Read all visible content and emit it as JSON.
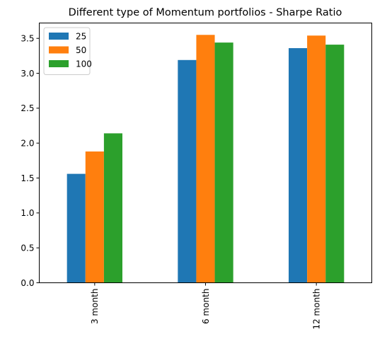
{
  "chart_data": {
    "type": "bar",
    "title": "Different type of Momentum portfolios - Sharpe Ratio",
    "xlabel": "",
    "ylabel": "",
    "categories": [
      "3 month",
      "6 month",
      "12 month"
    ],
    "series": [
      {
        "name": "25",
        "color": "#1f77b4",
        "values": [
          1.56,
          3.19,
          3.36
        ]
      },
      {
        "name": "50",
        "color": "#ff7f0e",
        "values": [
          1.88,
          3.55,
          3.54
        ]
      },
      {
        "name": "100",
        "color": "#2ca02c",
        "values": [
          2.14,
          3.44,
          3.41
        ]
      }
    ],
    "ylim": [
      0,
      3.72
    ],
    "yticks": [
      "0.0",
      "0.5",
      "1.0",
      "1.5",
      "2.0",
      "2.5",
      "3.0",
      "3.5"
    ],
    "grid": false,
    "legend_position": "top-left"
  }
}
